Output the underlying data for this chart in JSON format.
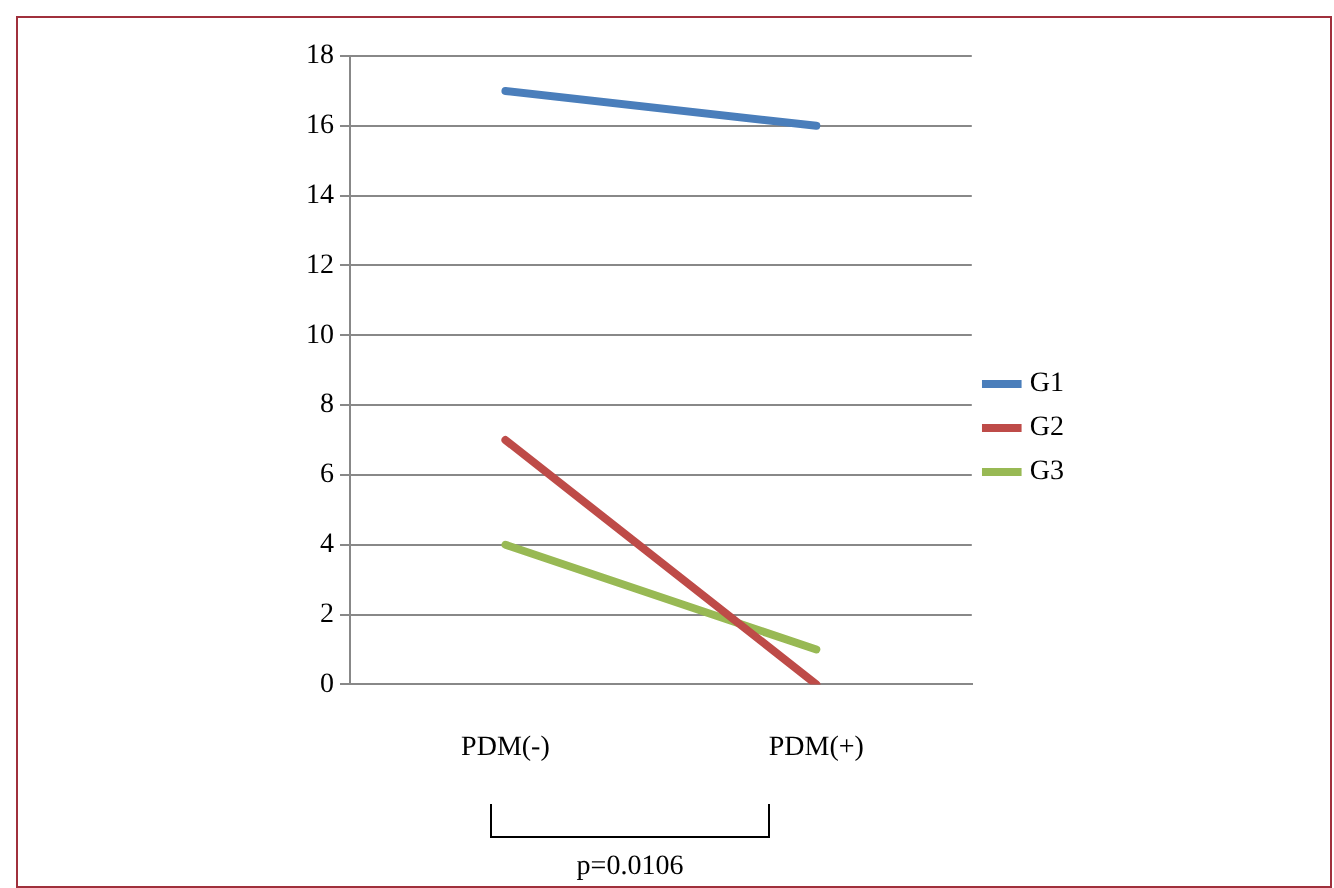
{
  "chart_data": {
    "type": "line",
    "categories": [
      "PDM(-)",
      "PDM(+)"
    ],
    "series": [
      {
        "name": "G1",
        "color": "#4a7ebb",
        "values": [
          17,
          16
        ]
      },
      {
        "name": "G2",
        "color": "#be4b48",
        "values": [
          7,
          0
        ]
      },
      {
        "name": "G3",
        "color": "#98b954",
        "values": [
          4,
          1
        ]
      }
    ],
    "ylim": [
      0,
      18
    ],
    "yticks": [
      0,
      2,
      4,
      6,
      8,
      10,
      12,
      14,
      16,
      18
    ],
    "grid": "y",
    "legend": "right",
    "marker": "none",
    "annotations": [
      "p=0.0106"
    ]
  }
}
